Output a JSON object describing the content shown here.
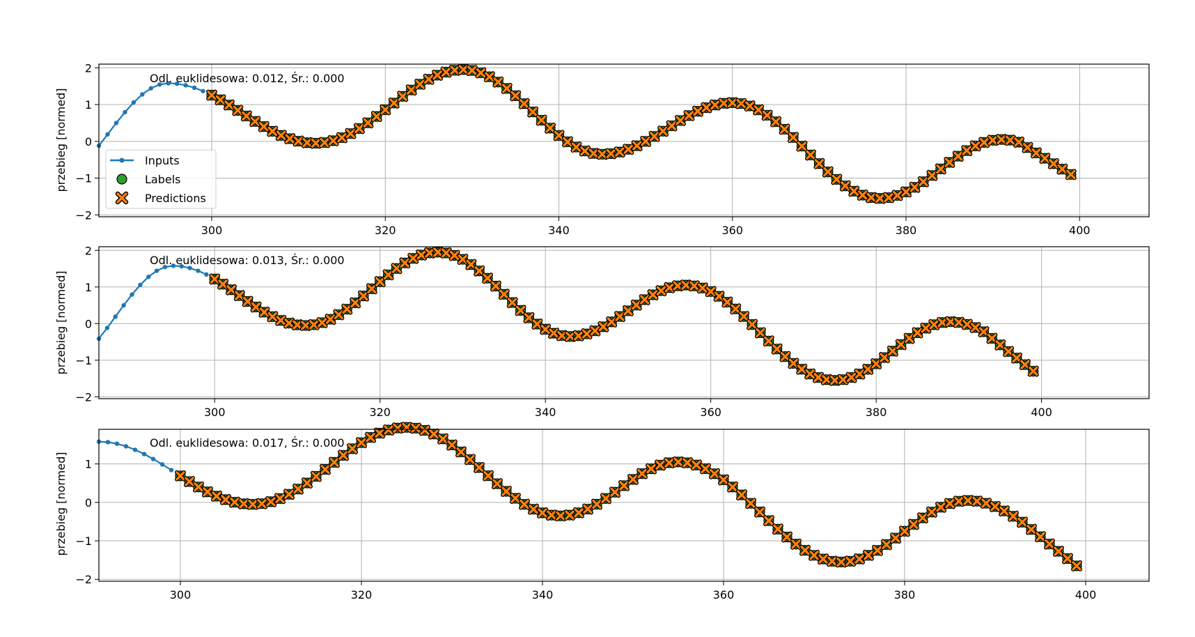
{
  "chart_data": [
    {
      "type": "line",
      "annotation": "Odl. euklidesowa: 0.012, Śr.: 0.000",
      "ylabel": "przebieg [normed]",
      "xlim": [
        287,
        408
      ],
      "ylim": [
        -2.05,
        2.1
      ],
      "xticks": [
        300,
        320,
        340,
        360,
        380,
        400
      ],
      "yticks": [
        -2,
        -1,
        0,
        1,
        2
      ],
      "grid": true,
      "input_start": 287,
      "label_start": 300,
      "label_end": 399,
      "peak_x": [
        329,
        360,
        391
      ],
      "peak_y": [
        1.95,
        1.05,
        0.05
      ],
      "trough_x": [
        312,
        345,
        377
      ],
      "trough_y": [
        -0.05,
        -0.35,
        -1.55
      ],
      "end_value": -0.9,
      "legend": {
        "location": "center-left",
        "entries": [
          "Inputs",
          "Labels",
          "Predictions"
        ]
      }
    },
    {
      "type": "line",
      "annotation": "Odl. euklidesowa: 0.013, Śr.: 0.000",
      "ylabel": "przebieg [normed]",
      "xlim": [
        286,
        413
      ],
      "ylim": [
        -2.05,
        2.1
      ],
      "xticks": [
        300,
        320,
        340,
        360,
        380,
        400
      ],
      "yticks": [
        -2,
        -1,
        0,
        1,
        2
      ],
      "grid": true,
      "input_start": 286,
      "label_start": 300,
      "label_end": 399,
      "peak_x": [
        327,
        357,
        389
      ],
      "peak_y": [
        1.95,
        1.05,
        0.05
      ],
      "trough_x": [
        311,
        343,
        375
      ],
      "trough_y": [
        -0.05,
        -0.35,
        -1.55
      ],
      "end_value": -1.3
    },
    {
      "type": "line",
      "annotation": "Odl. euklidesowa: 0.017, Śr.: 0.000",
      "ylabel": "przebieg [normed]",
      "xlim": [
        291,
        407
      ],
      "ylim": [
        -2.05,
        1.9
      ],
      "xticks": [
        300,
        320,
        340,
        360,
        380,
        400
      ],
      "yticks": [
        -2,
        -1,
        0,
        1
      ],
      "grid": true,
      "input_start": 291,
      "label_start": 300,
      "label_end": 399,
      "peak_x": [
        325,
        355,
        387
      ],
      "peak_y": [
        1.95,
        1.05,
        0.05
      ],
      "trough_x": [
        308,
        342,
        373
      ],
      "trough_y": [
        -0.05,
        -0.35,
        -1.55
      ],
      "end_value": -1.65
    }
  ],
  "colors": {
    "inputs": "#1f77b4",
    "labels": "#2ca02c",
    "predictions": "#ff7f0e",
    "grid": "#b0b0b0"
  }
}
